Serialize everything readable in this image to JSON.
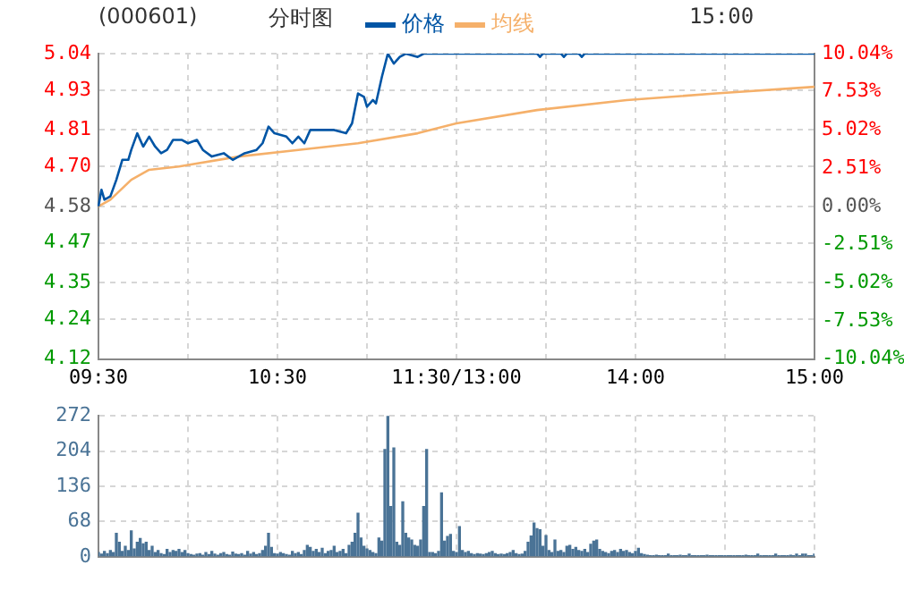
{
  "chart_data": [
    {
      "type": "line",
      "title": "(000601)",
      "subtitle": "分时图",
      "annotations": [
        "15:00"
      ],
      "legend": "top",
      "grid": true,
      "marker": "none",
      "categories": [
        "09:30",
        null,
        null,
        null,
        null,
        null,
        null,
        null,
        null,
        null,
        null,
        null,
        null,
        null,
        null,
        null,
        null,
        null,
        null,
        null,
        null,
        null,
        null,
        null,
        null,
        null,
        null,
        null,
        null,
        null,
        null,
        null,
        null,
        null,
        null,
        null,
        null,
        null,
        null,
        null,
        null,
        null,
        null,
        null,
        null,
        null,
        null,
        null,
        null,
        null,
        null,
        null,
        null,
        null,
        null,
        null,
        null,
        null,
        null,
        null,
        "10:30",
        null,
        null,
        null,
        null,
        null,
        null,
        null,
        null,
        null,
        null,
        null,
        null,
        null,
        null,
        null,
        null,
        null,
        null,
        null,
        null,
        null,
        null,
        null,
        null,
        null,
        null,
        null,
        null,
        null,
        null,
        null,
        null,
        null,
        null,
        null,
        null,
        null,
        null,
        null,
        null,
        null,
        null,
        null,
        null,
        null,
        null,
        null,
        null,
        null,
        null,
        null,
        null,
        null,
        null,
        null,
        null,
        null,
        null,
        null,
        "11:30/13:00",
        null,
        null,
        null,
        null,
        null,
        null,
        null,
        null,
        null,
        null,
        null,
        null,
        null,
        null,
        null,
        null,
        null,
        null,
        null,
        null,
        null,
        null,
        null,
        null,
        null,
        null,
        null,
        null,
        null,
        null,
        null,
        null,
        null,
        null,
        null,
        null,
        null,
        null,
        null,
        null,
        null,
        null,
        null,
        null,
        null,
        null,
        null,
        null,
        null,
        null,
        null,
        null,
        null,
        null,
        null,
        null,
        null,
        null,
        null,
        "14:00",
        null,
        null,
        null,
        null,
        null,
        null,
        null,
        null,
        null,
        null,
        null,
        null,
        null,
        null,
        null,
        null,
        null,
        null,
        null,
        null,
        null,
        null,
        null,
        null,
        null,
        null,
        null,
        null,
        null,
        null,
        null,
        null,
        null,
        null,
        null,
        null,
        null,
        null,
        null,
        null,
        null,
        null,
        null,
        null,
        null,
        null,
        null,
        null,
        null,
        null,
        null,
        null,
        null,
        null,
        null,
        null,
        null,
        null,
        null,
        "15:00"
      ],
      "ylim": [
        4.12,
        5.04
      ],
      "yticks": [
        4.12,
        4.24,
        4.35,
        4.47,
        4.58,
        {
          "value": 4.7,
          "label": "4.70"
        },
        4.81,
        4.93,
        5.04
      ],
      "y2lim": [
        -10.04,
        10.04
      ],
      "y2ticks": [
        {
          "value": -10.04,
          "label": "-10.04%"
        },
        {
          "value": -7.53,
          "label": "-7.53%"
        },
        {
          "value": -5.02,
          "label": "-5.02%"
        },
        {
          "value": -2.51,
          "label": "-2.51%"
        },
        {
          "value": 0,
          "label": "0.00%"
        },
        {
          "value": 2.51,
          "label": "2.51%"
        },
        {
          "value": 5.02,
          "label": "5.02%"
        },
        {
          "value": 7.53,
          "label": "7.53%"
        },
        {
          "value": 10.04,
          "label": "10.04%"
        }
      ],
      "series": [
        {
          "name": "价格",
          "color": "#0055a5",
          "values": [
            4.58,
            4.63,
            4.6,
            null,
            4.61,
            null,
            4.66,
            null,
            4.72,
            null,
            4.72,
            4.75,
            null,
            4.8,
            null,
            4.76,
            null,
            4.79,
            null,
            4.76,
            null,
            4.74,
            null,
            4.75,
            null,
            4.78,
            null,
            null,
            4.78,
            null,
            4.77,
            null,
            null,
            4.78,
            null,
            4.75,
            null,
            null,
            4.73,
            null,
            null,
            null,
            4.74,
            null,
            null,
            4.72,
            null,
            null,
            null,
            4.74,
            null,
            null,
            null,
            4.75,
            null,
            4.77,
            null,
            4.82,
            null,
            4.8,
            null,
            null,
            null,
            4.79,
            null,
            4.77,
            null,
            4.79,
            null,
            4.77,
            null,
            4.81,
            null,
            null,
            4.81,
            null,
            null,
            null,
            null,
            4.81,
            null,
            null,
            null,
            4.8,
            null,
            4.83,
            null,
            4.92,
            null,
            4.91,
            4.88,
            null,
            4.9,
            4.89,
            null,
            4.97,
            null,
            5.04,
            null,
            5.01,
            null,
            5.03,
            null,
            5.04,
            null,
            null,
            null,
            5.03,
            null,
            5.04,
            null,
            null,
            null,
            null,
            null,
            null,
            null,
            null,
            null,
            null,
            null,
            null,
            null,
            null,
            null,
            null,
            null,
            null,
            null,
            null,
            null,
            null,
            null,
            null,
            null,
            null,
            null,
            null,
            null,
            null,
            null,
            null,
            null,
            null,
            null,
            null,
            null,
            5.04,
            5.03,
            5.04,
            null,
            null,
            null,
            null,
            null,
            5.04,
            5.03,
            5.04,
            null,
            null,
            null,
            5.04,
            5.03,
            5.04,
            null,
            null,
            null,
            null,
            null,
            null,
            null,
            null,
            null,
            null,
            null,
            null,
            null,
            null,
            null,
            null,
            null,
            null,
            null,
            null,
            null,
            null,
            null,
            null,
            null,
            null,
            null,
            null,
            null,
            null,
            null,
            null,
            null,
            null,
            null,
            null,
            null,
            null,
            null,
            null,
            null,
            null,
            null,
            null,
            null,
            null,
            null,
            null,
            null,
            null,
            null,
            null,
            null,
            null,
            null,
            null,
            null,
            null,
            null,
            null,
            null,
            null,
            null,
            null,
            null,
            null,
            null,
            null,
            null,
            null,
            null,
            null,
            null,
            null,
            null,
            null,
            5.04
          ]
        },
        {
          "name": "均线",
          "color": "#f5b06a",
          "values": [
            4.58,
            null,
            null,
            null,
            4.6,
            null,
            null,
            null,
            null,
            null,
            null,
            4.66,
            null,
            null,
            null,
            null,
            null,
            4.69,
            null,
            null,
            null,
            null,
            null,
            null,
            null,
            null,
            null,
            4.7,
            null,
            null,
            null,
            null,
            null,
            null,
            null,
            null,
            null,
            null,
            null,
            null,
            null,
            null,
            null,
            null,
            null,
            null,
            null,
            4.73,
            null,
            null,
            null,
            null,
            null,
            null,
            null,
            null,
            null,
            null,
            null,
            null,
            null,
            null,
            null,
            null,
            null,
            null,
            null,
            4.75,
            null,
            null,
            null,
            null,
            null,
            null,
            null,
            null,
            null,
            null,
            null,
            null,
            null,
            null,
            null,
            null,
            null,
            null,
            null,
            4.77,
            null,
            null,
            null,
            null,
            null,
            null,
            null,
            null,
            null,
            null,
            null,
            null,
            null,
            null,
            null,
            null,
            null,
            null,
            null,
            4.8,
            null,
            null,
            null,
            null,
            null,
            null,
            null,
            null,
            null,
            null,
            null,
            null,
            4.83,
            null,
            null,
            null,
            null,
            null,
            null,
            null,
            null,
            null,
            null,
            null,
            null,
            null,
            null,
            null,
            null,
            null,
            null,
            null,
            null,
            null,
            null,
            null,
            null,
            null,
            null,
            4.87,
            null,
            null,
            null,
            null,
            null,
            null,
            null,
            null,
            null,
            null,
            null,
            null,
            null,
            null,
            null,
            null,
            null,
            null,
            null,
            null,
            null,
            null,
            null,
            null,
            null,
            null,
            null,
            null,
            null,
            4.9,
            null,
            null,
            null,
            null,
            null,
            null,
            null,
            null,
            null,
            null,
            null,
            null,
            null,
            null,
            null,
            null,
            null,
            null,
            null,
            null,
            null,
            null,
            null,
            null,
            null,
            null,
            null,
            null,
            null,
            4.92,
            null,
            null,
            null,
            null,
            null,
            null,
            null,
            null,
            null,
            null,
            null,
            null,
            null,
            null,
            null,
            null,
            null,
            null,
            null,
            null,
            null,
            null,
            null,
            null,
            null,
            null,
            null,
            null,
            null,
            null,
            null,
            null,
            4.94
          ]
        }
      ]
    },
    {
      "type": "bar",
      "grid": true,
      "tick_labels": "y",
      "color": "#4a7396",
      "categories": [
        null,
        null,
        null,
        null,
        null,
        null,
        null,
        null,
        null,
        null,
        null,
        null,
        null,
        null,
        null,
        null,
        null,
        null,
        null,
        null,
        null,
        null,
        null,
        null,
        null,
        null,
        null,
        null,
        null,
        null,
        null,
        null,
        null,
        null,
        null,
        null,
        null,
        null,
        null,
        null,
        null,
        null,
        null,
        null,
        null,
        null,
        null,
        null,
        null,
        null,
        null,
        null,
        null,
        null,
        null,
        null,
        null,
        null,
        null,
        null,
        null,
        null,
        null,
        null,
        null,
        null,
        null,
        null,
        null,
        null,
        null,
        null,
        null,
        null,
        null,
        null,
        null,
        null,
        null,
        null,
        null,
        null,
        null,
        null,
        null,
        null,
        null,
        null,
        null,
        null,
        null,
        null,
        null,
        null,
        null,
        null,
        null,
        null,
        null,
        null,
        null,
        null,
        null,
        null,
        null,
        null,
        null,
        null,
        null,
        null,
        null,
        null,
        null,
        null,
        null,
        null,
        null,
        null,
        null,
        null,
        null,
        null,
        null,
        null,
        null,
        null,
        null,
        null,
        null,
        null,
        null,
        null,
        null,
        null,
        null,
        null,
        null,
        null,
        null,
        null,
        null,
        null,
        null,
        null,
        null,
        null,
        null,
        null,
        null,
        null,
        null,
        null,
        null,
        null,
        null,
        null,
        null,
        null,
        null,
        null,
        null,
        null,
        null,
        null,
        null,
        null,
        null,
        null,
        null,
        null,
        null,
        null,
        null,
        null,
        null,
        null,
        null,
        null,
        null,
        null,
        null,
        null,
        null,
        null,
        null,
        null,
        null,
        null,
        null,
        null,
        null,
        null,
        null,
        null,
        null,
        null,
        null,
        null,
        null,
        null,
        null,
        null,
        null,
        null,
        null,
        null,
        null,
        null,
        null,
        null,
        null,
        null,
        null,
        null,
        null,
        null,
        null,
        null,
        null,
        null,
        null,
        null,
        null,
        null,
        null,
        null,
        null,
        null,
        null,
        null,
        null,
        null,
        null,
        null,
        null,
        null,
        null,
        null,
        null,
        null,
        null
      ],
      "ylim": [
        0,
        272
      ],
      "yticks": [
        0,
        68,
        136,
        204,
        272
      ],
      "values": [
        8,
        5,
        10,
        6,
        12,
        8,
        45,
        28,
        10,
        20,
        12,
        50,
        15,
        28,
        35,
        25,
        28,
        12,
        20,
        8,
        12,
        6,
        4,
        14,
        8,
        12,
        10,
        14,
        8,
        12,
        6,
        4,
        3,
        5,
        6,
        3,
        8,
        4,
        10,
        5,
        3,
        6,
        8,
        4,
        3,
        9,
        5,
        4,
        6,
        3,
        10,
        5,
        8,
        4,
        6,
        12,
        20,
        45,
        18,
        6,
        5,
        8,
        6,
        4,
        3,
        10,
        6,
        8,
        4,
        12,
        22,
        18,
        10,
        14,
        8,
        16,
        6,
        10,
        12,
        20,
        8,
        10,
        14,
        6,
        22,
        28,
        45,
        84,
        36,
        20,
        15,
        12,
        8,
        6,
        36,
        30,
        207,
        272,
        97,
        210,
        28,
        22,
        106,
        45,
        36,
        32,
        22,
        20,
        32,
        97,
        207,
        8,
        8,
        6,
        10,
        123,
        30,
        39,
        43,
        10,
        8,
        58,
        12,
        8,
        10,
        6,
        4,
        6,
        5,
        4,
        6,
        8,
        10,
        6,
        4,
        5,
        4,
        6,
        8,
        12,
        6,
        4,
        5,
        10,
        28,
        40,
        65,
        54,
        52,
        20,
        41,
        12,
        8,
        32,
        10,
        12,
        8,
        20,
        22,
        14,
        18,
        12,
        10,
        14,
        8,
        24,
        30,
        32,
        14,
        10,
        8,
        6,
        10,
        12,
        8,
        14,
        10,
        12,
        8,
        6,
        10,
        16,
        6,
        4,
        3,
        2,
        2,
        3,
        2,
        2,
        2,
        5,
        2,
        2,
        2,
        3,
        2,
        2,
        5,
        2,
        2,
        2,
        2,
        2,
        3,
        2,
        2,
        2,
        2,
        2,
        2,
        2,
        2,
        2,
        2,
        2,
        2,
        3,
        2,
        2,
        2,
        5,
        2,
        2,
        2,
        2,
        2,
        5,
        2,
        2,
        2,
        2,
        3,
        2,
        5,
        2,
        5,
        5,
        2,
        2,
        5
      ]
    }
  ]
}
